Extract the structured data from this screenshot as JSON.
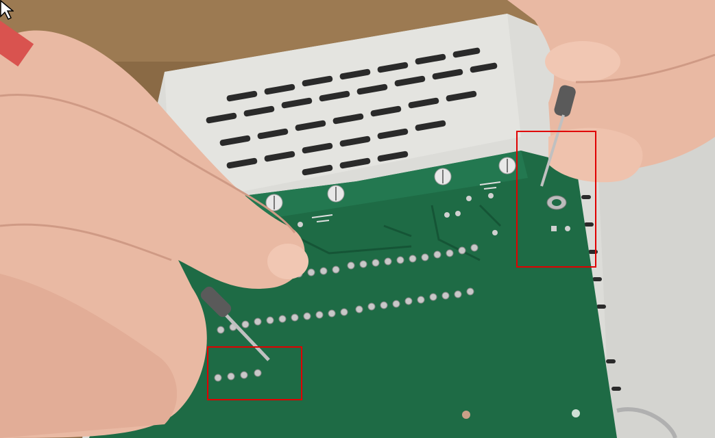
{
  "scene": {
    "subject": "multimeter-probe-test-on-pcb",
    "colors": {
      "pcb": "#1e6b45",
      "pcb_dark": "#155536",
      "enclosure": "#dcdcd8",
      "table": "#8a6a45",
      "skin": "#e9b9a3",
      "highlight": "#e00000",
      "probe_grip": "#4a4a4a"
    }
  },
  "annotations": [
    {
      "id": "right-probe-contact"
    },
    {
      "id": "left-probe-contact"
    }
  ]
}
